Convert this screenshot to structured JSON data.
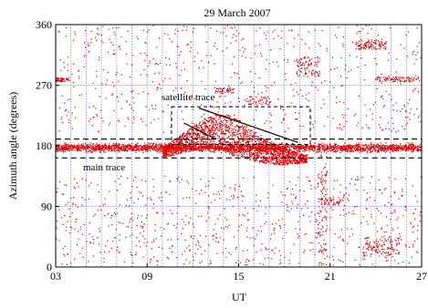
{
  "chart_data": {
    "type": "scatter",
    "title": "29 March 2007",
    "xlabel": "UT",
    "ylabel": "Azimuth angle (degrees)",
    "xlim": [
      3,
      27
    ],
    "ylim": [
      0,
      360
    ],
    "x_ticks": [
      {
        "value": 3,
        "label": "03"
      },
      {
        "value": 9,
        "label": "09"
      },
      {
        "value": 15,
        "label": "15"
      },
      {
        "value": 21,
        "label": "21"
      },
      {
        "value": 27,
        "label": "27"
      }
    ],
    "y_ticks": [
      {
        "value": 0,
        "label": "0"
      },
      {
        "value": 90,
        "label": "90"
      },
      {
        "value": 180,
        "label": "180"
      },
      {
        "value": 270,
        "label": "270"
      },
      {
        "value": 360,
        "label": "360"
      }
    ],
    "vertical_grid_hours": [
      4,
      5,
      6,
      7,
      8,
      9,
      10,
      11,
      12,
      13,
      14,
      15,
      16,
      17,
      18,
      19,
      20,
      21,
      22,
      23,
      24,
      25,
      26
    ],
    "horizontal_grid": [
      90,
      180,
      270
    ],
    "grid": true,
    "grid_color": "#8080ff",
    "point_color": "#e00000",
    "annotations": [
      {
        "label": "satellite trace"
      },
      {
        "label": "main trace"
      }
    ],
    "main_trace_box": {
      "x": [
        3,
        27
      ],
      "y": [
        162,
        190
      ]
    },
    "satellite_box": {
      "x": [
        10.6,
        19.7
      ],
      "y": [
        182,
        238
      ]
    },
    "satellite_lines": [
      {
        "x1": 11.4,
        "y1": 214,
        "x2": 13.4,
        "y2": 191
      },
      {
        "x1": 12.4,
        "y1": 236,
        "x2": 18.9,
        "y2": 185
      }
    ],
    "dense_regions": [
      {
        "name": "main trace",
        "x": [
          3,
          27
        ],
        "y": [
          168,
          186
        ],
        "points": 2600
      },
      {
        "name": "satellite cloud",
        "x": [
          10,
          19.5
        ],
        "y": [
          120,
          232
        ],
        "points": 1900
      },
      {
        "name": "cluster 280 left",
        "x": [
          3.0,
          3.9
        ],
        "y": [
          275,
          281
        ],
        "points": 60
      },
      {
        "name": "cluster 280 right",
        "x": [
          23.9,
          26.9
        ],
        "y": [
          275,
          282
        ],
        "points": 90
      },
      {
        "name": "cluster 330",
        "x": [
          22.6,
          24.7
        ],
        "y": [
          323,
          338
        ],
        "points": 110
      },
      {
        "name": "cluster 300",
        "x": [
          18.8,
          20.3
        ],
        "y": [
          282,
          312
        ],
        "points": 90
      },
      {
        "name": "cluster 265",
        "x": [
          13.4,
          14.7
        ],
        "y": [
          258,
          266
        ],
        "points": 40
      },
      {
        "name": "cluster 248",
        "x": [
          15.4,
          17.2
        ],
        "y": [
          241,
          253
        ],
        "points": 40
      },
      {
        "name": "cluster 100",
        "x": [
          20.4,
          21.9
        ],
        "y": [
          92,
          104
        ],
        "points": 50
      },
      {
        "name": "cluster 30",
        "x": [
          23.1,
          25.6
        ],
        "y": [
          15,
          45
        ],
        "points": 120
      },
      {
        "name": "dip 20.5",
        "x": [
          20.2,
          20.8
        ],
        "y": [
          0,
          180
        ],
        "points": 110
      },
      {
        "name": "upper scatter",
        "x": [
          3,
          27
        ],
        "y": [
          200,
          360
        ],
        "points": 650
      },
      {
        "name": "lower scatter",
        "x": [
          3,
          27
        ],
        "y": [
          2,
          135
        ],
        "points": 750
      }
    ]
  }
}
